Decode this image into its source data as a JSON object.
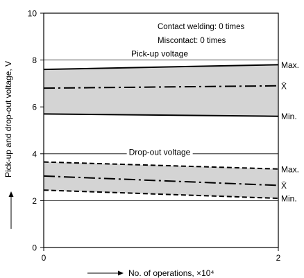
{
  "chart_data": {
    "type": "area",
    "title": "",
    "xlabel": "No. of operations, ×10⁴",
    "ylabel": "Pick-up and drop-out voltage, V",
    "xlim": [
      0,
      2
    ],
    "ylim": [
      0,
      10
    ],
    "x_ticks": [
      0,
      2
    ],
    "y_ticks": [
      0,
      2,
      4,
      6,
      8,
      10
    ],
    "grid_y": [
      2,
      4,
      6,
      8
    ],
    "annotations": [
      "Contact welding: 0 times",
      "Miscontact: 0 times"
    ],
    "groups": [
      {
        "label": "Pick-up voltage",
        "series": [
          {
            "name": "Max.",
            "x": [
              0,
              2
            ],
            "y": [
              7.6,
              7.8
            ],
            "style": "solid"
          },
          {
            "name": "X̄",
            "x": [
              0,
              2
            ],
            "y": [
              6.8,
              6.9
            ],
            "style": "dashdot"
          },
          {
            "name": "Min.",
            "x": [
              0,
              2
            ],
            "y": [
              5.7,
              5.6
            ],
            "style": "solid"
          }
        ]
      },
      {
        "label": "Drop-out voltage",
        "series": [
          {
            "name": "Max.",
            "x": [
              0,
              2
            ],
            "y": [
              3.65,
              3.35
            ],
            "style": "dashed"
          },
          {
            "name": "X̄",
            "x": [
              0,
              2
            ],
            "y": [
              3.05,
              2.65
            ],
            "style": "dashdot"
          },
          {
            "name": "Min.",
            "x": [
              0,
              2
            ],
            "y": [
              2.45,
              2.1
            ],
            "style": "dashed"
          }
        ]
      }
    ],
    "band_fill": "#d4d4d4"
  }
}
